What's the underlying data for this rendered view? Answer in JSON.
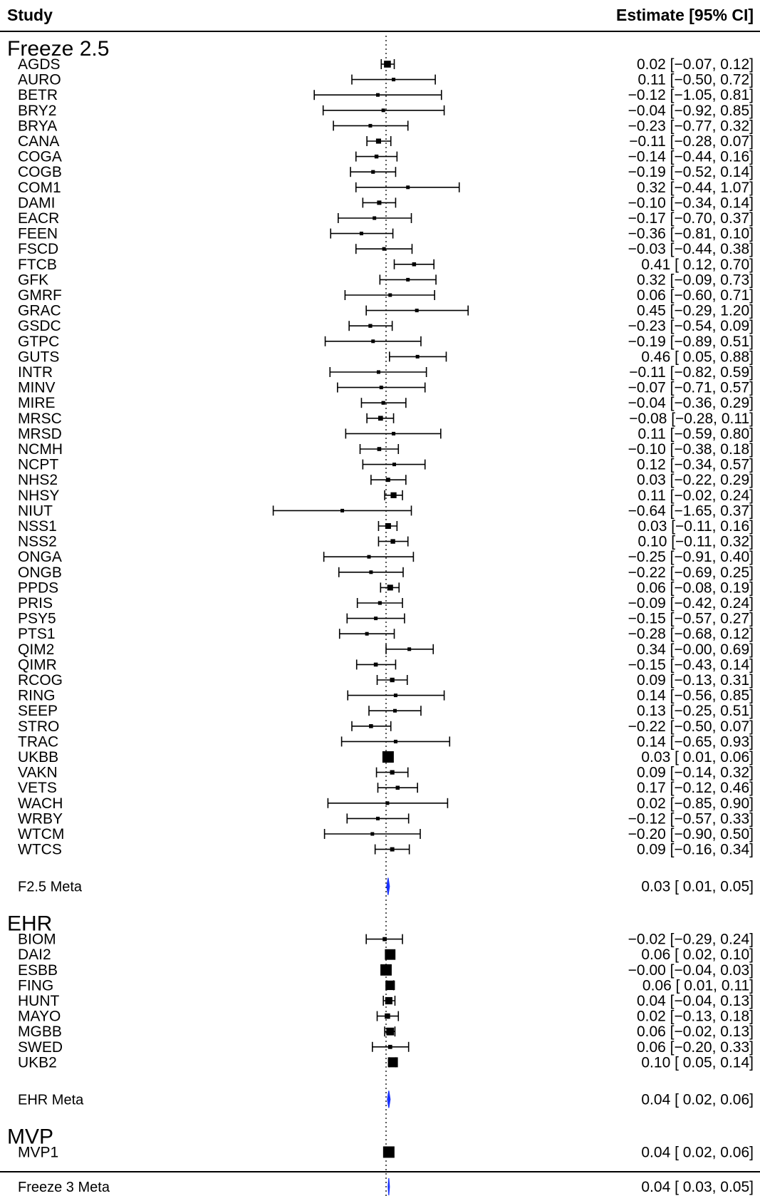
{
  "chart_data": {
    "type": "forest",
    "columns": {
      "study": "Study",
      "estimate": "Estimate [95% CI]"
    },
    "reference_line": 0,
    "xlim": [
      -2.0,
      1.5
    ],
    "colors": {
      "diamond": "#1a33ff",
      "marks": "#000000"
    },
    "groups": [
      {
        "name": "Freeze 2.5",
        "studies": [
          {
            "name": "AGDS",
            "est": 0.02,
            "lo": -0.07,
            "hi": 0.12,
            "text": "0.02 [−0.07, 0.12]"
          },
          {
            "name": "AURO",
            "est": 0.11,
            "lo": -0.5,
            "hi": 0.72,
            "text": "0.11 [−0.50, 0.72]"
          },
          {
            "name": "BETR",
            "est": -0.12,
            "lo": -1.05,
            "hi": 0.81,
            "text": "−0.12 [−1.05, 0.81]"
          },
          {
            "name": "BRY2",
            "est": -0.04,
            "lo": -0.92,
            "hi": 0.85,
            "text": "−0.04 [−0.92, 0.85]"
          },
          {
            "name": "BRYA",
            "est": -0.23,
            "lo": -0.77,
            "hi": 0.32,
            "text": "−0.23 [−0.77, 0.32]"
          },
          {
            "name": "CANA",
            "est": -0.11,
            "lo": -0.28,
            "hi": 0.07,
            "text": "−0.11 [−0.28, 0.07]"
          },
          {
            "name": "COGA",
            "est": -0.14,
            "lo": -0.44,
            "hi": 0.16,
            "text": "−0.14 [−0.44, 0.16]"
          },
          {
            "name": "COGB",
            "est": -0.19,
            "lo": -0.52,
            "hi": 0.14,
            "text": "−0.19 [−0.52, 0.14]"
          },
          {
            "name": "COM1",
            "est": 0.32,
            "lo": -0.44,
            "hi": 1.07,
            "text": "0.32 [−0.44, 1.07]"
          },
          {
            "name": "DAMI",
            "est": -0.1,
            "lo": -0.34,
            "hi": 0.14,
            "text": "−0.10 [−0.34, 0.14]"
          },
          {
            "name": "EACR",
            "est": -0.17,
            "lo": -0.7,
            "hi": 0.37,
            "text": "−0.17 [−0.70, 0.37]"
          },
          {
            "name": "FEEN",
            "est": -0.36,
            "lo": -0.81,
            "hi": 0.1,
            "text": "−0.36 [−0.81, 0.10]"
          },
          {
            "name": "FSCD",
            "est": -0.03,
            "lo": -0.44,
            "hi": 0.38,
            "text": "−0.03 [−0.44, 0.38]"
          },
          {
            "name": "FTCB",
            "est": 0.41,
            "lo": 0.12,
            "hi": 0.7,
            "text": "0.41 [ 0.12, 0.70]"
          },
          {
            "name": "GFK",
            "est": 0.32,
            "lo": -0.09,
            "hi": 0.73,
            "text": "0.32 [−0.09, 0.73]"
          },
          {
            "name": "GMRF",
            "est": 0.06,
            "lo": -0.6,
            "hi": 0.71,
            "text": "0.06 [−0.60, 0.71]"
          },
          {
            "name": "GRAC",
            "est": 0.45,
            "lo": -0.29,
            "hi": 1.2,
            "text": "0.45 [−0.29, 1.20]"
          },
          {
            "name": "GSDC",
            "est": -0.23,
            "lo": -0.54,
            "hi": 0.09,
            "text": "−0.23 [−0.54, 0.09]"
          },
          {
            "name": "GTPC",
            "est": -0.19,
            "lo": -0.89,
            "hi": 0.51,
            "text": "−0.19 [−0.89, 0.51]"
          },
          {
            "name": "GUTS",
            "est": 0.46,
            "lo": 0.05,
            "hi": 0.88,
            "text": "0.46 [ 0.05, 0.88]"
          },
          {
            "name": "INTR",
            "est": -0.11,
            "lo": -0.82,
            "hi": 0.59,
            "text": "−0.11 [−0.82, 0.59]"
          },
          {
            "name": "MINV",
            "est": -0.07,
            "lo": -0.71,
            "hi": 0.57,
            "text": "−0.07 [−0.71, 0.57]"
          },
          {
            "name": "MIRE",
            "est": -0.04,
            "lo": -0.36,
            "hi": 0.29,
            "text": "−0.04 [−0.36, 0.29]"
          },
          {
            "name": "MRSC",
            "est": -0.08,
            "lo": -0.28,
            "hi": 0.11,
            "text": "−0.08 [−0.28, 0.11]"
          },
          {
            "name": "MRSD",
            "est": 0.11,
            "lo": -0.59,
            "hi": 0.8,
            "text": "0.11 [−0.59, 0.80]"
          },
          {
            "name": "NCMH",
            "est": -0.1,
            "lo": -0.38,
            "hi": 0.18,
            "text": "−0.10 [−0.38, 0.18]"
          },
          {
            "name": "NCPT",
            "est": 0.12,
            "lo": -0.34,
            "hi": 0.57,
            "text": "0.12 [−0.34, 0.57]"
          },
          {
            "name": "NHS2",
            "est": 0.03,
            "lo": -0.22,
            "hi": 0.29,
            "text": "0.03 [−0.22, 0.29]"
          },
          {
            "name": "NHSY",
            "est": 0.11,
            "lo": -0.02,
            "hi": 0.24,
            "text": "0.11 [−0.02, 0.24]"
          },
          {
            "name": "NIUT",
            "est": -0.64,
            "lo": -1.65,
            "hi": 0.37,
            "text": "−0.64 [−1.65, 0.37]"
          },
          {
            "name": "NSS1",
            "est": 0.03,
            "lo": -0.11,
            "hi": 0.16,
            "text": "0.03 [−0.11, 0.16]"
          },
          {
            "name": "NSS2",
            "est": 0.1,
            "lo": -0.11,
            "hi": 0.32,
            "text": "0.10 [−0.11, 0.32]"
          },
          {
            "name": "ONGA",
            "est": -0.25,
            "lo": -0.91,
            "hi": 0.4,
            "text": "−0.25 [−0.91, 0.40]"
          },
          {
            "name": "ONGB",
            "est": -0.22,
            "lo": -0.69,
            "hi": 0.25,
            "text": "−0.22 [−0.69, 0.25]"
          },
          {
            "name": "PPDS",
            "est": 0.06,
            "lo": -0.08,
            "hi": 0.19,
            "text": "0.06 [−0.08, 0.19]"
          },
          {
            "name": "PRIS",
            "est": -0.09,
            "lo": -0.42,
            "hi": 0.24,
            "text": "−0.09 [−0.42, 0.24]"
          },
          {
            "name": "PSY5",
            "est": -0.15,
            "lo": -0.57,
            "hi": 0.27,
            "text": "−0.15 [−0.57, 0.27]"
          },
          {
            "name": "PTS1",
            "est": -0.28,
            "lo": -0.68,
            "hi": 0.12,
            "text": "−0.28 [−0.68, 0.12]"
          },
          {
            "name": "QIM2",
            "est": 0.34,
            "lo": -0.0,
            "hi": 0.69,
            "text": "0.34 [−0.00, 0.69]"
          },
          {
            "name": "QIMR",
            "est": -0.15,
            "lo": -0.43,
            "hi": 0.14,
            "text": "−0.15 [−0.43, 0.14]"
          },
          {
            "name": "RCOG",
            "est": 0.09,
            "lo": -0.13,
            "hi": 0.31,
            "text": "0.09 [−0.13, 0.31]"
          },
          {
            "name": "RING",
            "est": 0.14,
            "lo": -0.56,
            "hi": 0.85,
            "text": "0.14 [−0.56, 0.85]"
          },
          {
            "name": "SEEP",
            "est": 0.13,
            "lo": -0.25,
            "hi": 0.51,
            "text": "0.13 [−0.25, 0.51]"
          },
          {
            "name": "STRO",
            "est": -0.22,
            "lo": -0.5,
            "hi": 0.07,
            "text": "−0.22 [−0.50, 0.07]"
          },
          {
            "name": "TRAC",
            "est": 0.14,
            "lo": -0.65,
            "hi": 0.93,
            "text": "0.14 [−0.65, 0.93]"
          },
          {
            "name": "UKBB",
            "est": 0.03,
            "lo": 0.01,
            "hi": 0.06,
            "text": "0.03 [ 0.01, 0.06]"
          },
          {
            "name": "VAKN",
            "est": 0.09,
            "lo": -0.14,
            "hi": 0.32,
            "text": "0.09 [−0.14, 0.32]"
          },
          {
            "name": "VETS",
            "est": 0.17,
            "lo": -0.12,
            "hi": 0.46,
            "text": "0.17 [−0.12, 0.46]"
          },
          {
            "name": "WACH",
            "est": 0.02,
            "lo": -0.85,
            "hi": 0.9,
            "text": "0.02 [−0.85, 0.90]"
          },
          {
            "name": "WRBY",
            "est": -0.12,
            "lo": -0.57,
            "hi": 0.33,
            "text": "−0.12 [−0.57, 0.33]"
          },
          {
            "name": "WTCM",
            "est": -0.2,
            "lo": -0.9,
            "hi": 0.5,
            "text": "−0.20 [−0.90, 0.50]"
          },
          {
            "name": "WTCS",
            "est": 0.09,
            "lo": -0.16,
            "hi": 0.34,
            "text": "0.09 [−0.16, 0.34]"
          }
        ],
        "meta": {
          "name": "F2.5 Meta",
          "est": 0.03,
          "lo": 0.01,
          "hi": 0.05,
          "text": "0.03 [ 0.01, 0.05]"
        }
      },
      {
        "name": "EHR",
        "studies": [
          {
            "name": "BIOM",
            "est": -0.02,
            "lo": -0.29,
            "hi": 0.24,
            "text": "−0.02 [−0.29, 0.24]"
          },
          {
            "name": "DAI2",
            "est": 0.06,
            "lo": 0.02,
            "hi": 0.1,
            "text": "0.06 [ 0.02, 0.10]"
          },
          {
            "name": "ESBB",
            "est": -0.0,
            "lo": -0.04,
            "hi": 0.03,
            "text": "−0.00 [−0.04, 0.03]"
          },
          {
            "name": "FING",
            "est": 0.06,
            "lo": 0.01,
            "hi": 0.11,
            "text": "0.06 [ 0.01, 0.11]"
          },
          {
            "name": "HUNT",
            "est": 0.04,
            "lo": -0.04,
            "hi": 0.13,
            "text": "0.04 [−0.04, 0.13]"
          },
          {
            "name": "MAYO",
            "est": 0.02,
            "lo": -0.13,
            "hi": 0.18,
            "text": "0.02 [−0.13, 0.18]"
          },
          {
            "name": "MGBB",
            "est": 0.06,
            "lo": -0.02,
            "hi": 0.13,
            "text": "0.06 [−0.02, 0.13]"
          },
          {
            "name": "SWED",
            "est": 0.06,
            "lo": -0.2,
            "hi": 0.33,
            "text": "0.06 [−0.20, 0.33]"
          },
          {
            "name": "UKB2",
            "est": 0.1,
            "lo": 0.05,
            "hi": 0.14,
            "text": "0.10 [ 0.05, 0.14]"
          }
        ],
        "meta": {
          "name": "EHR Meta",
          "est": 0.04,
          "lo": 0.02,
          "hi": 0.06,
          "text": "0.04 [ 0.02, 0.06]"
        }
      },
      {
        "name": "MVP",
        "studies": [
          {
            "name": "MVP1",
            "est": 0.04,
            "lo": 0.02,
            "hi": 0.06,
            "text": "0.04 [ 0.02, 0.06]"
          }
        ],
        "meta": null
      }
    ],
    "overall": {
      "name": "Freeze 3 Meta",
      "est": 0.04,
      "lo": 0.03,
      "hi": 0.05,
      "text": "0.04 [ 0.03, 0.05]"
    }
  }
}
